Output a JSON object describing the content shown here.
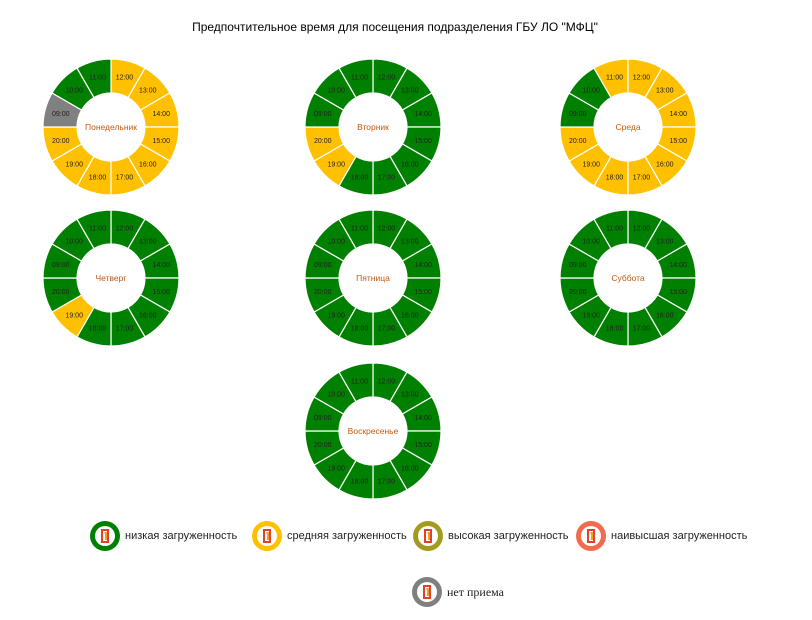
{
  "title": "Предпочтительное время для посещения подразделения ГБУ ЛО \"МФЦ\"",
  "colors": {
    "low": "#008000",
    "medium": "#FFC000",
    "high": "#A39B1F",
    "highest": "#F26B4D",
    "closed": "#808080",
    "day_label": "#C55A11"
  },
  "legend": [
    {
      "key": "low",
      "label": "низкая загруженность"
    },
    {
      "key": "medium",
      "label": "средняя загруженность"
    },
    {
      "key": "high",
      "label": "высокая загруженность"
    },
    {
      "key": "highest",
      "label": "наивысшая загруженность"
    },
    {
      "key": "closed",
      "label": "нет приема"
    }
  ],
  "chart_data": [
    {
      "type": "pie",
      "title": "Понедельник",
      "labels": [
        "12:00",
        "13:00",
        "14:00",
        "15:00",
        "16:00",
        "17:00",
        "18:00",
        "19:00",
        "20:00",
        "09:00",
        "10:00",
        "11:00"
      ],
      "values": [
        1,
        1,
        1,
        1,
        1,
        1,
        1,
        1,
        1,
        1,
        1,
        1
      ],
      "load": [
        "medium",
        "medium",
        "medium",
        "medium",
        "medium",
        "medium",
        "medium",
        "medium",
        "medium",
        "closed",
        "low",
        "low"
      ]
    },
    {
      "type": "pie",
      "title": "Вторник",
      "labels": [
        "12:00",
        "13:00",
        "14:00",
        "15:00",
        "16:00",
        "17:00",
        "18:00",
        "19:00",
        "20:00",
        "09:00",
        "10:00",
        "11:00"
      ],
      "values": [
        1,
        1,
        1,
        1,
        1,
        1,
        1,
        1,
        1,
        1,
        1,
        1
      ],
      "load": [
        "low",
        "low",
        "low",
        "low",
        "low",
        "low",
        "low",
        "medium",
        "medium",
        "low",
        "low",
        "low"
      ]
    },
    {
      "type": "pie",
      "title": "Среда",
      "labels": [
        "12:00",
        "13:00",
        "14:00",
        "15:00",
        "16:00",
        "17:00",
        "18:00",
        "19:00",
        "20:00",
        "09:00",
        "10:00",
        "11:00"
      ],
      "values": [
        1,
        1,
        1,
        1,
        1,
        1,
        1,
        1,
        1,
        1,
        1,
        1
      ],
      "load": [
        "medium",
        "medium",
        "medium",
        "medium",
        "medium",
        "medium",
        "medium",
        "medium",
        "medium",
        "low",
        "low",
        "medium"
      ]
    },
    {
      "type": "pie",
      "title": "Четверг",
      "labels": [
        "12:00",
        "13:00",
        "14:00",
        "15:00",
        "16:00",
        "17:00",
        "18:00",
        "19:00",
        "20:00",
        "09:00",
        "10:00",
        "11:00"
      ],
      "values": [
        1,
        1,
        1,
        1,
        1,
        1,
        1,
        1,
        1,
        1,
        1,
        1
      ],
      "load": [
        "low",
        "low",
        "low",
        "low",
        "low",
        "low",
        "low",
        "medium",
        "low",
        "low",
        "low",
        "low"
      ]
    },
    {
      "type": "pie",
      "title": "Пятница",
      "labels": [
        "12:00",
        "13:00",
        "14:00",
        "15:00",
        "16:00",
        "17:00",
        "18:00",
        "19:00",
        "20:00",
        "09:00",
        "10:00",
        "11:00"
      ],
      "values": [
        1,
        1,
        1,
        1,
        1,
        1,
        1,
        1,
        1,
        1,
        1,
        1
      ],
      "load": [
        "low",
        "low",
        "low",
        "low",
        "low",
        "low",
        "low",
        "low",
        "low",
        "low",
        "low",
        "low"
      ]
    },
    {
      "type": "pie",
      "title": "Суббота",
      "labels": [
        "12:00",
        "13:00",
        "14:00",
        "15:00",
        "16:00",
        "17:00",
        "18:00",
        "19:00",
        "20:00",
        "09:00",
        "10:00",
        "11:00"
      ],
      "values": [
        1,
        1,
        1,
        1,
        1,
        1,
        1,
        1,
        1,
        1,
        1,
        1
      ],
      "load": [
        "low",
        "low",
        "low",
        "low",
        "low",
        "low",
        "low",
        "low",
        "low",
        "low",
        "low",
        "low"
      ]
    },
    {
      "type": "pie",
      "title": "Воскресенье",
      "labels": [
        "12:00",
        "13:00",
        "14:00",
        "15:00",
        "16:00",
        "17:00",
        "18:00",
        "19:00",
        "20:00",
        "09:00",
        "10:00",
        "11:00"
      ],
      "values": [
        1,
        1,
        1,
        1,
        1,
        1,
        1,
        1,
        1,
        1,
        1,
        1
      ],
      "load": [
        "low",
        "low",
        "low",
        "low",
        "low",
        "low",
        "low",
        "low",
        "low",
        "low",
        "low",
        "low"
      ]
    }
  ]
}
